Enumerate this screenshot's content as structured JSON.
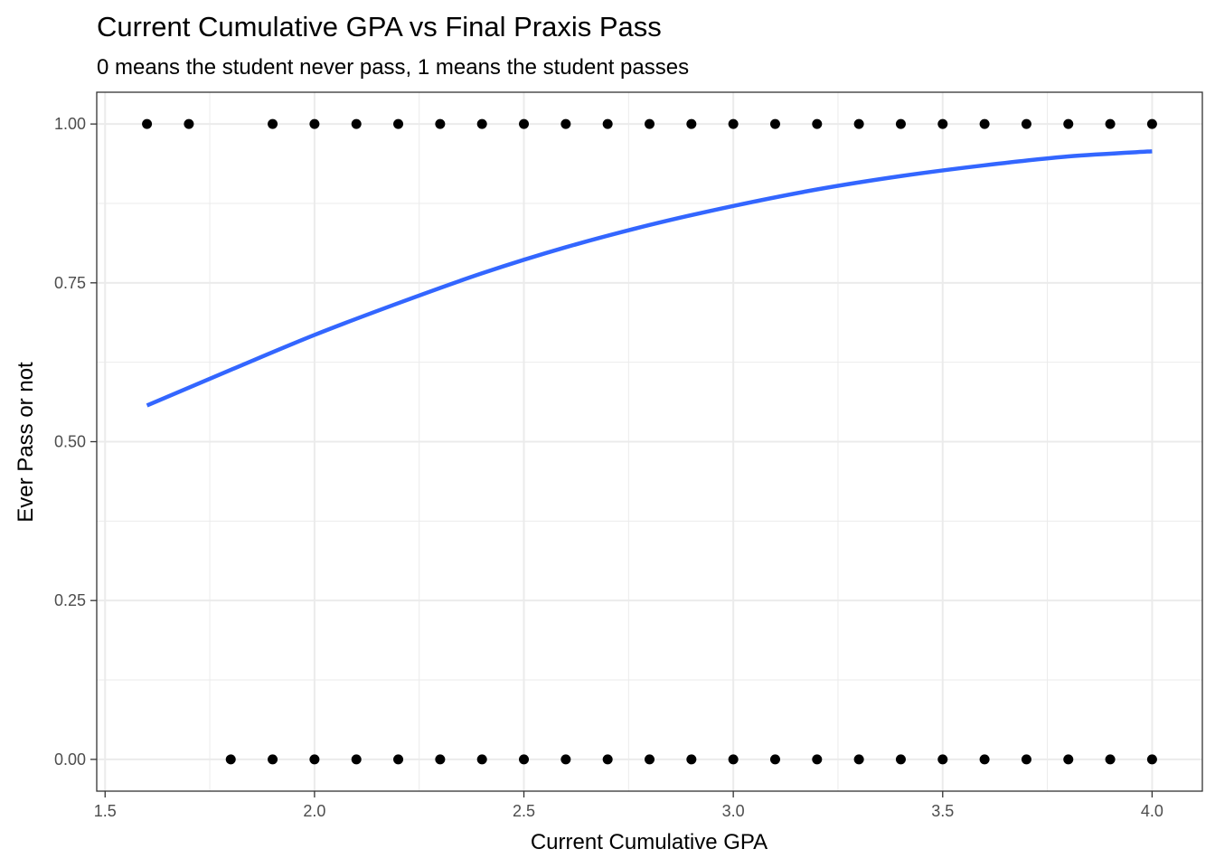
{
  "chart_data": {
    "type": "scatter",
    "title": "Current Cumulative GPA vs Final Praxis Pass",
    "subtitle": "0 means the student never pass, 1 means the student passes",
    "xlabel": "Current Cumulative GPA",
    "ylabel": "Ever Pass or not",
    "xlim": [
      1.48,
      4.12
    ],
    "ylim": [
      -0.05,
      1.05
    ],
    "x_ticks": [
      1.5,
      2.0,
      2.5,
      3.0,
      3.5,
      4.0
    ],
    "x_tick_labels": [
      "1.5",
      "2.0",
      "2.5",
      "3.0",
      "3.5",
      "4.0"
    ],
    "y_ticks": [
      0,
      0.25,
      0.5,
      0.75,
      1.0
    ],
    "y_tick_labels": [
      "0.00",
      "0.25",
      "0.50",
      "0.75",
      "1.00"
    ],
    "grid": true,
    "colors": {
      "points": "#000000",
      "curve": "#3366ff",
      "grid": "#ebebeb",
      "border": "#333333"
    },
    "points_pass": {
      "x": [
        1.6,
        1.7,
        1.9,
        2.0,
        2.1,
        2.2,
        2.3,
        2.4,
        2.5,
        2.6,
        2.7,
        2.8,
        2.9,
        3.0,
        3.1,
        3.2,
        3.3,
        3.4,
        3.5,
        3.6,
        3.7,
        3.8,
        3.9,
        4.0
      ],
      "y": 1
    },
    "points_fail": {
      "x": [
        1.8,
        1.9,
        2.0,
        2.1,
        2.2,
        2.3,
        2.4,
        2.5,
        2.6,
        2.7,
        2.8,
        2.9,
        3.0,
        3.1,
        3.2,
        3.3,
        3.4,
        3.5,
        3.6,
        3.7,
        3.8,
        3.9,
        4.0
      ],
      "y": 0
    },
    "fit_curve": {
      "x": [
        1.6,
        1.8,
        2.0,
        2.2,
        2.4,
        2.6,
        2.8,
        3.0,
        3.2,
        3.4,
        3.6,
        3.8,
        4.0
      ],
      "y": [
        0.557,
        0.613,
        0.668,
        0.718,
        0.765,
        0.806,
        0.841,
        0.871,
        0.897,
        0.918,
        0.935,
        0.949,
        0.957
      ]
    }
  }
}
